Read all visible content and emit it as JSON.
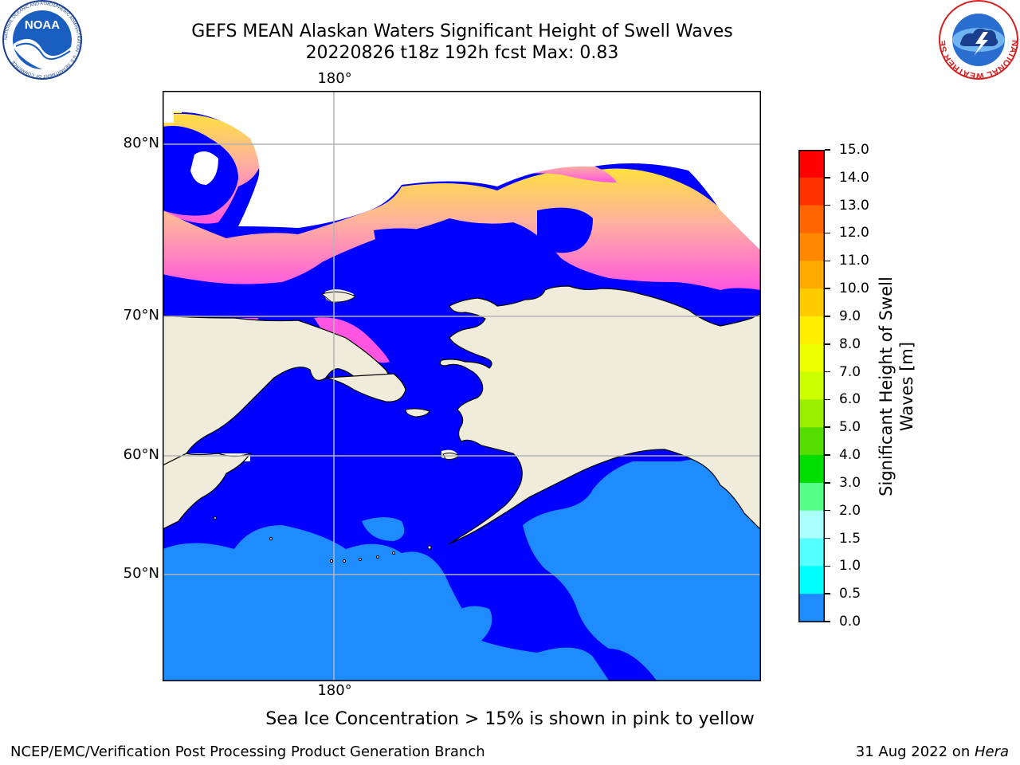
{
  "header": {
    "title_line_1": "GEFS MEAN Alaskan Waters Significant Height of Swell Waves",
    "title_line_2": "20220826 t18z 192h fcst   Max: 0.83"
  },
  "logos": {
    "noaa_text": "NOAA",
    "noaa_ring_text": "NATIONAL OCEANIC AND ATMOSPHERIC ADMINISTRATION · U.S. DEPARTMENT OF COMMERCE",
    "nws_ring_text": "NATIONAL WEATHER SERVICE"
  },
  "map": {
    "lon_label_top": "180°",
    "lon_label_bottom": "180°",
    "lat_labels": [
      "80°N",
      "70°N",
      "60°N",
      "50°N"
    ],
    "colors": {
      "land": "#efecdc",
      "swell_0_0_5": "#0000ff",
      "swell_0_5_1_0": "#1e8cff",
      "ice_pink": "#ff55e0",
      "ice_light": "#ffb0a0",
      "ice_yellow": "#ffe040",
      "gridline": "#b4b4b4"
    }
  },
  "colorbar": {
    "title_line_1": "Significant Height of Swell",
    "title_line_2": "Waves [m]",
    "ticks": [
      "15.0",
      "14.0",
      "13.0",
      "12.0",
      "11.0",
      "10.0",
      "9.0",
      "8.0",
      "7.0",
      "6.0",
      "5.0",
      "4.0",
      "3.0",
      "2.0",
      "1.5",
      "1.0",
      "0.5",
      "0.0"
    ],
    "colors": [
      "#ff0000",
      "#ff3300",
      "#ff6600",
      "#ff8800",
      "#ffaa00",
      "#ffcc00",
      "#ffee00",
      "#eeff00",
      "#ccff00",
      "#99ee00",
      "#55dd00",
      "#00dd00",
      "#55ff88",
      "#aaffff",
      "#55ffff",
      "#00ffff",
      "#1e8cff",
      "#0000ff"
    ]
  },
  "footer": {
    "note": "Sea Ice Concentration > 15% is shown in pink to yellow",
    "credit_left": "NCEP/EMC/Verification Post Processing Product Generation Branch",
    "credit_date": "31 Aug 2022 on ",
    "credit_host": "Hera"
  }
}
